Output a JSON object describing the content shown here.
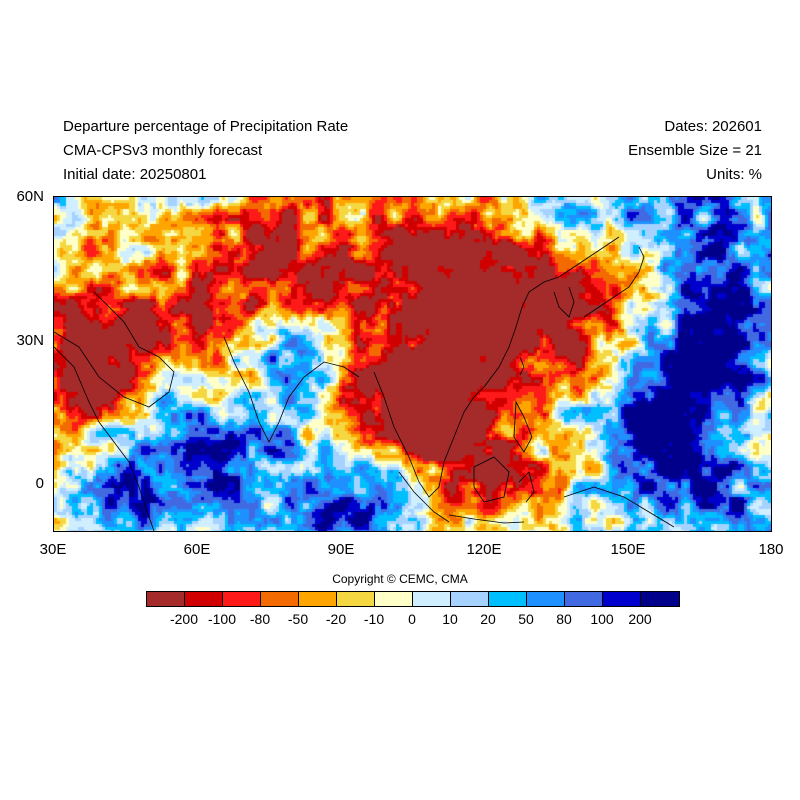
{
  "header": {
    "title": "Departure percentage of Precipitation Rate",
    "model": "CMA-CPSv3 monthly forecast",
    "initial_date": "Initial date: 20250801",
    "dates": "Dates: 202601",
    "ensemble": "Ensemble Size = 21",
    "units": "Units: %"
  },
  "map": {
    "region": "30E-180E, 10S-60N",
    "lon_range": [
      30,
      180
    ],
    "lat_range": [
      -10,
      60
    ],
    "lon_ticks": [
      "30E",
      "60E",
      "90E",
      "120E",
      "150E",
      "180"
    ],
    "lat_ticks": [
      "60N",
      "30N",
      "0"
    ]
  },
  "colorbar": {
    "colors": [
      "#a52a2a",
      "#d10000",
      "#ff1a1a",
      "#f26a00",
      "#ffa500",
      "#f5d742",
      "#ffffc8",
      "#cfeeff",
      "#a6d2ff",
      "#00bfff",
      "#1e90ff",
      "#4169e1",
      "#0000cd",
      "#00008b"
    ],
    "labels": [
      "-200",
      "-100",
      "-80",
      "-50",
      "-20",
      "-10",
      "0",
      "10",
      "20",
      "50",
      "80",
      "100",
      "200"
    ]
  },
  "copyright": "Copyright © CEMC, CMA"
}
